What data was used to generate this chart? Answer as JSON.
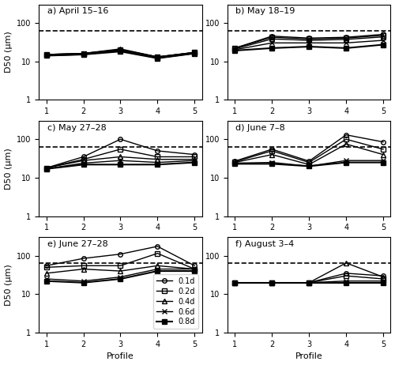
{
  "subplots": [
    {
      "label": "a) April 15–16",
      "series": {
        "0.1d": [
          15,
          16,
          20,
          13,
          17
        ],
        "0.2d": [
          15,
          16,
          20,
          13,
          17
        ],
        "0.4d": [
          15,
          16,
          21,
          13,
          17
        ],
        "0.6d": [
          14,
          15,
          19,
          12,
          16
        ],
        "0.8d": [
          14,
          15,
          18,
          12,
          16
        ]
      }
    },
    {
      "label": "b) May 18–19",
      "series": {
        "0.1d": [
          22,
          45,
          40,
          42,
          50
        ],
        "0.2d": [
          22,
          42,
          38,
          40,
          47
        ],
        "0.4d": [
          21,
          38,
          35,
          37,
          43
        ],
        "0.6d": [
          20,
          30,
          30,
          30,
          35
        ],
        "0.8d": [
          19,
          22,
          24,
          22,
          27
        ]
      }
    },
    {
      "label": "c) May 27–28",
      "series": {
        "0.1d": [
          18,
          35,
          100,
          50,
          40
        ],
        "0.2d": [
          18,
          30,
          55,
          35,
          35
        ],
        "0.4d": [
          18,
          28,
          35,
          30,
          30
        ],
        "0.6d": [
          17,
          24,
          28,
          25,
          28
        ],
        "0.8d": [
          17,
          22,
          22,
          22,
          25
        ]
      }
    },
    {
      "label": "d) June 7–8",
      "series": {
        "0.1d": [
          27,
          55,
          27,
          130,
          85
        ],
        "0.2d": [
          26,
          50,
          25,
          100,
          55
        ],
        "0.4d": [
          25,
          40,
          22,
          75,
          40
        ],
        "0.6d": [
          24,
          25,
          20,
          28,
          28
        ],
        "0.8d": [
          23,
          23,
          20,
          25,
          25
        ]
      }
    },
    {
      "label": "e) June 27–28",
      "series": {
        "0.1d": [
          55,
          85,
          110,
          175,
          55
        ],
        "0.2d": [
          50,
          55,
          55,
          115,
          45
        ],
        "0.4d": [
          35,
          45,
          40,
          55,
          45
        ],
        "0.6d": [
          25,
          22,
          28,
          45,
          45
        ],
        "0.8d": [
          22,
          20,
          25,
          40,
          40
        ]
      }
    },
    {
      "label": "f) August 3–4",
      "series": {
        "0.1d": [
          20,
          20,
          20,
          35,
          30
        ],
        "0.2d": [
          20,
          20,
          20,
          30,
          25
        ],
        "0.4d": [
          20,
          20,
          20,
          65,
          28
        ],
        "0.6d": [
          20,
          20,
          20,
          22,
          22
        ],
        "0.8d": [
          20,
          20,
          20,
          20,
          20
        ]
      }
    }
  ],
  "dashed_line": 63,
  "ylim": [
    1,
    300
  ],
  "xlim": [
    0.8,
    5.2
  ],
  "xticks": [
    1,
    2,
    3,
    4,
    5
  ],
  "legend_labels": [
    "0.1d",
    "0.2d",
    "0.4d",
    "0.6d",
    "0.8d"
  ],
  "xlabel": "Profile",
  "ylabel": "D50 (μm)",
  "figsize": [
    5.0,
    4.62
  ],
  "dpi": 100
}
